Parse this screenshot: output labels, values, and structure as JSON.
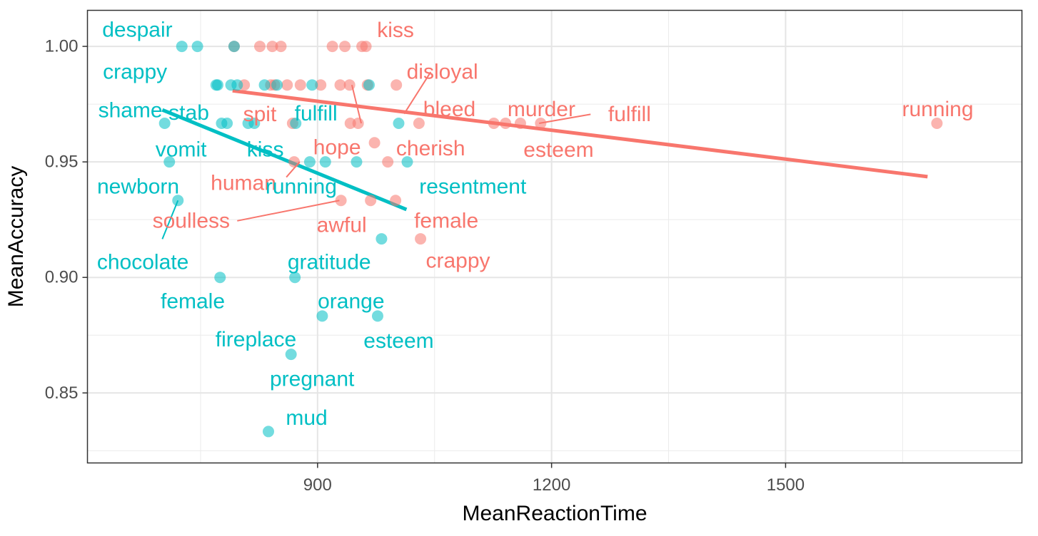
{
  "chart_data": {
    "type": "scatter",
    "xlabel": "MeanReactionTime",
    "ylabel": "MeanAccuracy",
    "xlim": [
      605,
      1803
    ],
    "ylim": [
      0.8197,
      1.0156
    ],
    "xticks": [
      900,
      1200,
      1500
    ],
    "xtick_labels": [
      "900",
      "1200",
      "1500"
    ],
    "yticks": [
      0.85,
      0.9,
      0.95,
      1.0
    ],
    "ytick_labels": [
      "0.85",
      "0.90",
      "0.95",
      "1.00"
    ],
    "minor_xticks": [
      750,
      1050,
      1350,
      1650
    ],
    "minor_yticks": [
      0.825,
      0.875,
      0.925,
      0.975
    ],
    "grid": true,
    "legend": "none",
    "colors": {
      "red": "#F8766D",
      "teal": "#00BFC4"
    },
    "series": [
      {
        "color": "#F8766D",
        "points": [
          {
            "x": 793,
            "y": 1.0
          },
          {
            "x": 826,
            "y": 1.0
          },
          {
            "x": 842,
            "y": 1.0
          },
          {
            "x": 853,
            "y": 1.0
          },
          {
            "x": 919,
            "y": 1.0
          },
          {
            "x": 935,
            "y": 1.0
          },
          {
            "x": 957,
            "y": 1.0
          },
          {
            "x": 962,
            "y": 1.0
          },
          {
            "x": 806,
            "y": 0.9833
          },
          {
            "x": 840,
            "y": 0.9833
          },
          {
            "x": 845,
            "y": 0.9833
          },
          {
            "x": 861,
            "y": 0.9833
          },
          {
            "x": 878,
            "y": 0.9833
          },
          {
            "x": 904,
            "y": 0.9833
          },
          {
            "x": 929,
            "y": 0.9833
          },
          {
            "x": 941,
            "y": 0.9833
          },
          {
            "x": 964,
            "y": 0.9833
          },
          {
            "x": 1001,
            "y": 0.9833
          },
          {
            "x": 868,
            "y": 0.9667
          },
          {
            "x": 942,
            "y": 0.9667
          },
          {
            "x": 952,
            "y": 0.9667
          },
          {
            "x": 1030,
            "y": 0.9667
          },
          {
            "x": 1126,
            "y": 0.9667
          },
          {
            "x": 1141,
            "y": 0.9667
          },
          {
            "x": 1160,
            "y": 0.9667
          },
          {
            "x": 1186,
            "y": 0.9667
          },
          {
            "x": 1694,
            "y": 0.9667
          },
          {
            "x": 973,
            "y": 0.9583
          },
          {
            "x": 870,
            "y": 0.95
          },
          {
            "x": 990,
            "y": 0.95
          },
          {
            "x": 930,
            "y": 0.9333
          },
          {
            "x": 968,
            "y": 0.9333
          },
          {
            "x": 1000,
            "y": 0.9333
          },
          {
            "x": 1032,
            "y": 0.9167
          }
        ],
        "fit": {
          "x": [
            791,
            1682
          ],
          "y": [
            0.9808,
            0.9436
          ]
        }
      },
      {
        "color": "#00BFC4",
        "points": [
          {
            "x": 726,
            "y": 1.0
          },
          {
            "x": 746,
            "y": 1.0
          },
          {
            "x": 793,
            "y": 1.0
          },
          {
            "x": 770,
            "y": 0.9833
          },
          {
            "x": 772,
            "y": 0.9833
          },
          {
            "x": 789,
            "y": 0.9833
          },
          {
            "x": 797,
            "y": 0.9833
          },
          {
            "x": 832,
            "y": 0.9833
          },
          {
            "x": 848,
            "y": 0.9833
          },
          {
            "x": 893,
            "y": 0.9833
          },
          {
            "x": 966,
            "y": 0.9833
          },
          {
            "x": 704,
            "y": 0.9667
          },
          {
            "x": 777,
            "y": 0.9667
          },
          {
            "x": 784,
            "y": 0.9667
          },
          {
            "x": 811,
            "y": 0.9667
          },
          {
            "x": 819,
            "y": 0.9667
          },
          {
            "x": 872,
            "y": 0.9667
          },
          {
            "x": 1004,
            "y": 0.9667
          },
          {
            "x": 710,
            "y": 0.95
          },
          {
            "x": 890,
            "y": 0.95
          },
          {
            "x": 910,
            "y": 0.95
          },
          {
            "x": 950,
            "y": 0.95
          },
          {
            "x": 1015,
            "y": 0.95
          },
          {
            "x": 721,
            "y": 0.9333
          },
          {
            "x": 982,
            "y": 0.9167
          },
          {
            "x": 775,
            "y": 0.9
          },
          {
            "x": 871,
            "y": 0.9
          },
          {
            "x": 906,
            "y": 0.8833
          },
          {
            "x": 977,
            "y": 0.8833
          },
          {
            "x": 866,
            "y": 0.8667
          },
          {
            "x": 837,
            "y": 0.8333
          }
        ],
        "fit": {
          "x": [
            701,
            1014
          ],
          "y": [
            0.9725,
            0.9294
          ]
        }
      }
    ],
    "labels": [
      {
        "text": "kiss",
        "series": 0,
        "x": 1000,
        "y": 1.007
      },
      {
        "text": "disloyal",
        "series": 0,
        "x": 1060,
        "y": 0.9889
      },
      {
        "text": "bleed",
        "series": 0,
        "x": 1069,
        "y": 0.9727
      },
      {
        "text": "murder",
        "series": 0,
        "x": 1187,
        "y": 0.9727
      },
      {
        "text": "fulfill",
        "series": 0,
        "x": 1300,
        "y": 0.9706
      },
      {
        "text": "running",
        "series": 0,
        "x": 1695,
        "y": 0.9727
      },
      {
        "text": "spit",
        "series": 0,
        "x": 826,
        "y": 0.9706
      },
      {
        "text": "hope",
        "series": 0,
        "x": 925,
        "y": 0.9562
      },
      {
        "text": "cherish",
        "series": 0,
        "x": 1045,
        "y": 0.9558
      },
      {
        "text": "esteem",
        "series": 0,
        "x": 1209,
        "y": 0.9552
      },
      {
        "text": "human",
        "series": 0,
        "x": 805,
        "y": 0.9408
      },
      {
        "text": "soulless",
        "series": 0,
        "x": 738,
        "y": 0.9244
      },
      {
        "text": "awful",
        "series": 0,
        "x": 931,
        "y": 0.9226
      },
      {
        "text": "female",
        "series": 0,
        "x": 1065,
        "y": 0.9244
      },
      {
        "text": "crappy",
        "series": 0,
        "x": 1080,
        "y": 0.9071
      },
      {
        "text": "despair",
        "series": 1,
        "x": 669,
        "y": 1.0071
      },
      {
        "text": "crappy",
        "series": 1,
        "x": 666,
        "y": 0.9889
      },
      {
        "text": "shame",
        "series": 1,
        "x": 660,
        "y": 0.9723
      },
      {
        "text": "stab",
        "series": 1,
        "x": 735,
        "y": 0.9712
      },
      {
        "text": "fulfill",
        "series": 1,
        "x": 898,
        "y": 0.9708
      },
      {
        "text": "vomit",
        "series": 1,
        "x": 725,
        "y": 0.9553
      },
      {
        "text": "kiss",
        "series": 1,
        "x": 833,
        "y": 0.9553
      },
      {
        "text": "newborn",
        "series": 1,
        "x": 670,
        "y": 0.9393
      },
      {
        "text": "running",
        "series": 1,
        "x": 879,
        "y": 0.9393
      },
      {
        "text": "resentment",
        "series": 1,
        "x": 1099,
        "y": 0.9393
      },
      {
        "text": "chocolate",
        "series": 1,
        "x": 676,
        "y": 0.9066
      },
      {
        "text": "gratitude",
        "series": 1,
        "x": 915,
        "y": 0.9066
      },
      {
        "text": "female",
        "series": 1,
        "x": 740,
        "y": 0.8895
      },
      {
        "text": "orange",
        "series": 1,
        "x": 943,
        "y": 0.8895
      },
      {
        "text": "fireplace",
        "series": 1,
        "x": 821,
        "y": 0.873
      },
      {
        "text": "esteem",
        "series": 1,
        "x": 1004,
        "y": 0.8724
      },
      {
        "text": "pregnant",
        "series": 1,
        "x": 893,
        "y": 0.856
      },
      {
        "text": "mud",
        "series": 1,
        "x": 886,
        "y": 0.8391
      }
    ],
    "segments": [
      {
        "series": 0,
        "x": [
          1045,
          1011
        ],
        "y": [
          0.9889,
          0.9708
        ]
      },
      {
        "series": 0,
        "x": [
          944,
          956
        ],
        "y": [
          0.9833,
          0.9667
        ]
      },
      {
        "series": 0,
        "x": [
          1184,
          1250
        ],
        "y": [
          0.9667,
          0.9706
        ]
      },
      {
        "series": 0,
        "x": [
          860,
          877
        ],
        "y": [
          0.9434,
          0.95
        ]
      },
      {
        "series": 0,
        "x": [
          797,
          928
        ],
        "y": [
          0.9245,
          0.9333
        ]
      },
      {
        "series": 1,
        "x": [
          721,
          701
        ],
        "y": [
          0.9333,
          0.9166
        ]
      }
    ]
  }
}
